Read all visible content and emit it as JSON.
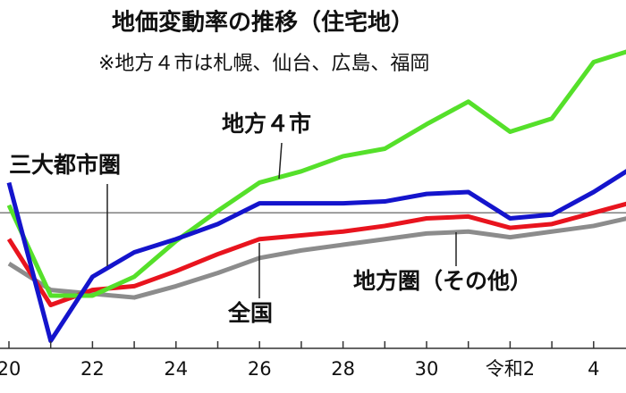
{
  "chart_data": {
    "type": "line",
    "title": "地価変動率の推移（住宅地）",
    "subtitle": "※地方４市は札幌、仙台、広島、福岡",
    "categories": [
      "20",
      null,
      "22",
      null,
      "24",
      null,
      "26",
      null,
      "28",
      null,
      "30",
      null,
      "令和2",
      null,
      "4",
      null
    ],
    "series": [
      {
        "name": "地方圏（その他）",
        "color": "#8c8c8c",
        "values": [
          -2.7,
          -4.1,
          -4.3,
          -4.5,
          -3.9,
          -3.2,
          -2.4,
          -2.0,
          -1.7,
          -1.4,
          -1.1,
          -1.0,
          -1.3,
          -1.0,
          -0.7,
          -0.2
        ]
      },
      {
        "name": "全国",
        "color": "#e8141e",
        "values": [
          -1.4,
          -4.9,
          -4.1,
          -3.9,
          -3.1,
          -2.2,
          -1.4,
          -1.2,
          -1.0,
          -0.7,
          -0.3,
          -0.2,
          -0.8,
          -0.6,
          0.0,
          0.6
        ]
      },
      {
        "name": "地方４市",
        "color": "#55e02a",
        "values": [
          0.4,
          -4.4,
          -4.4,
          -3.4,
          -1.5,
          0.1,
          1.6,
          2.2,
          3.0,
          3.4,
          4.7,
          5.9,
          4.3,
          5.0,
          8.0,
          8.7
        ]
      },
      {
        "name": "三大都市圏",
        "color": "#1414cc",
        "values": [
          1.6,
          -6.8,
          -3.4,
          -2.1,
          -1.4,
          -0.6,
          0.5,
          0.5,
          0.5,
          0.6,
          1.0,
          1.1,
          -0.3,
          -0.1,
          1.1,
          2.5
        ]
      }
    ],
    "ylim": [
      -7.2,
      9.4
    ],
    "yticks": [
      0
    ]
  }
}
